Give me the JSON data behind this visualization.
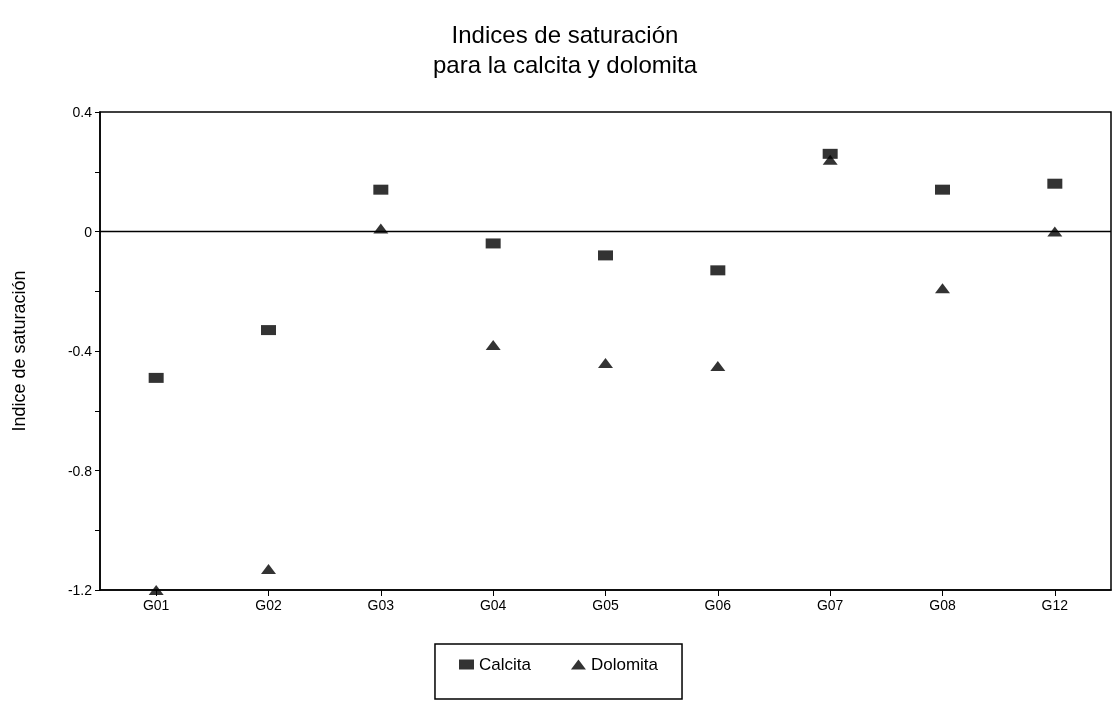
{
  "chart_data": {
    "type": "scatter",
    "title": "Indices de saturación\npara la calcita y dolomita",
    "ylabel": "Indice de saturación",
    "categories": [
      "G01",
      "G02",
      "G03",
      "G04",
      "G05",
      "G06",
      "G07",
      "G08",
      "G12"
    ],
    "series": [
      {
        "name": "Calcita",
        "color": "#000000",
        "marker": "square",
        "values": [
          -0.49,
          -0.33,
          0.14,
          -0.04,
          -0.08,
          -0.13,
          0.26,
          0.14,
          0.16
        ]
      },
      {
        "name": "Dolomita",
        "color": "#000000",
        "marker": "triangle",
        "values": [
          -1.2,
          -1.13,
          0.01,
          -0.38,
          -0.44,
          -0.45,
          0.24,
          -0.19,
          0.0
        ]
      }
    ],
    "ylim": [
      -1.2,
      0.4
    ],
    "yticks": [
      -1.2,
      {
        "value": -1.0,
        "label": null
      },
      -0.8,
      {
        "value": -0.6,
        "label": null
      },
      -0.4,
      {
        "value": -0.2,
        "label": null
      },
      0,
      {
        "value": 0.2,
        "label": null
      },
      0.4
    ],
    "ref_lines": [
      {
        "axis": "y",
        "value": 0,
        "color": "#000000"
      }
    ],
    "grid": false,
    "legend": "bottom"
  }
}
